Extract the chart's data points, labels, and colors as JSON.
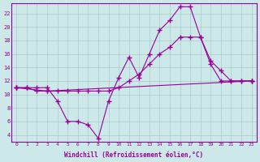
{
  "xlabel": "Windchill (Refroidissement éolien,°C)",
  "xlim": [
    -0.5,
    23.5
  ],
  "ylim": [
    3,
    23.5
  ],
  "xticks": [
    0,
    1,
    2,
    3,
    4,
    5,
    6,
    7,
    8,
    9,
    10,
    11,
    12,
    13,
    14,
    15,
    16,
    17,
    18,
    19,
    20,
    21,
    22,
    23
  ],
  "yticks": [
    4,
    6,
    8,
    10,
    12,
    14,
    16,
    18,
    20,
    22
  ],
  "bg_color": "#cce8e8",
  "grid_color": "#aacccc",
  "line_color": "#990099",
  "line1_x": [
    0,
    1,
    2,
    3,
    4,
    5,
    6,
    7,
    8,
    9,
    10,
    11,
    12,
    13,
    14,
    15,
    16,
    17,
    18,
    19,
    20,
    21,
    22,
    23
  ],
  "line1_y": [
    11,
    11,
    11,
    11,
    9,
    6,
    6,
    5.5,
    3.5,
    9,
    12.5,
    15.5,
    12.5,
    16,
    19.5,
    21,
    23,
    23,
    18.5,
    15,
    13.5,
    12,
    12,
    12
  ],
  "line2_x": [
    0,
    1,
    2,
    3,
    4,
    5,
    6,
    7,
    8,
    9,
    10,
    11,
    12,
    13,
    14,
    15,
    16,
    17,
    18,
    19,
    20,
    21,
    22,
    23
  ],
  "line2_y": [
    11,
    11,
    10.5,
    10.5,
    10.5,
    10.5,
    10.5,
    10.5,
    10.5,
    10.5,
    11,
    12,
    13,
    14.5,
    16,
    17,
    18.5,
    18.5,
    18.5,
    14.5,
    12,
    12,
    12,
    12
  ],
  "line3_x": [
    0,
    3,
    23
  ],
  "line3_y": [
    11,
    10.5,
    12
  ],
  "marker": "+",
  "markersize": 4
}
